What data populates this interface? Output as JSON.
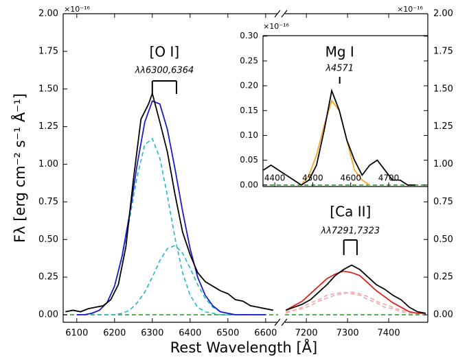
{
  "chart_data": [
    {
      "type": "line",
      "ylabel": "Fλ [erg cm⁻² s⁻¹ Å⁻¹]",
      "xlabel": "Rest Wavelength [Å]",
      "y_offset_label": "×10⁻¹⁶",
      "yaxis_side": "left",
      "xlim": [
        6064,
        6633
      ],
      "ylim": [
        -0.05,
        2.0
      ],
      "xticks": [
        6100,
        6200,
        6300,
        6400,
        6500,
        6600
      ],
      "yticks": [
        {
          "value": 0,
          "label": "0.00"
        },
        0.25,
        {
          "value": 0.5,
          "label": "0.50"
        },
        0.75,
        {
          "value": 1,
          "label": "1.00"
        },
        1.25,
        {
          "value": 1.5,
          "label": "1.50"
        },
        1.75,
        {
          "value": 2,
          "label": "2.00"
        }
      ],
      "series": [
        {
          "color": "#2ca02c",
          "dash": true,
          "x": [
            6064,
            6633
          ],
          "values": [
            0,
            0
          ]
        },
        {
          "color": "#1fb8c8",
          "dash": true,
          "x": [
            6100,
            6120,
            6140,
            6160,
            6180,
            6200,
            6220,
            6240,
            6260,
            6280,
            6300,
            6320,
            6340,
            6360,
            6380,
            6400,
            6420,
            6440,
            6460,
            6480,
            6500,
            6520,
            6540,
            6560,
            6580,
            6600
          ],
          "values": [
            0,
            0,
            0.01,
            0.03,
            0.08,
            0.19,
            0.38,
            0.64,
            0.92,
            1.13,
            1.17,
            1.04,
            0.79,
            0.51,
            0.28,
            0.13,
            0.05,
            0.02,
            0.01,
            0,
            0,
            0,
            0,
            0,
            0,
            0
          ]
        },
        {
          "color": "#1fb8c8",
          "dash": true,
          "x": [
            6100,
            6120,
            6140,
            6160,
            6180,
            6200,
            6220,
            6240,
            6260,
            6280,
            6300,
            6320,
            6340,
            6360,
            6380,
            6400,
            6420,
            6440,
            6460,
            6480,
            6500,
            6520,
            6540,
            6560,
            6580,
            6600
          ],
          "values": [
            0,
            0,
            0,
            0,
            0,
            0,
            0.01,
            0.03,
            0.08,
            0.15,
            0.25,
            0.36,
            0.44,
            0.46,
            0.41,
            0.31,
            0.2,
            0.11,
            0.05,
            0.02,
            0.01,
            0,
            0,
            0,
            0,
            0
          ]
        },
        {
          "color": "#1a1acc",
          "dash": false,
          "x": [
            6100,
            6120,
            6140,
            6160,
            6180,
            6200,
            6220,
            6240,
            6260,
            6280,
            6300,
            6320,
            6340,
            6360,
            6380,
            6400,
            6420,
            6440,
            6460,
            6480,
            6500,
            6520,
            6540,
            6560,
            6580,
            6600
          ],
          "values": [
            0,
            0,
            0.01,
            0.03,
            0.08,
            0.19,
            0.39,
            0.67,
            1.0,
            1.28,
            1.42,
            1.4,
            1.23,
            0.97,
            0.69,
            0.44,
            0.25,
            0.13,
            0.06,
            0.02,
            0.01,
            0,
            0,
            0,
            0,
            0
          ]
        },
        {
          "color": "#000000",
          "dash": false,
          "x": [
            6070,
            6090,
            6110,
            6130,
            6150,
            6170,
            6190,
            6210,
            6230,
            6250,
            6270,
            6290,
            6300,
            6320,
            6340,
            6360,
            6380,
            6400,
            6420,
            6440,
            6460,
            6480,
            6500,
            6520,
            6540,
            6560,
            6580,
            6600,
            6620
          ],
          "values": [
            0.02,
            0.03,
            0.02,
            0.04,
            0.05,
            0.06,
            0.1,
            0.2,
            0.45,
            0.9,
            1.3,
            1.4,
            1.47,
            1.28,
            1.08,
            0.8,
            0.55,
            0.4,
            0.28,
            0.22,
            0.19,
            0.16,
            0.14,
            0.1,
            0.09,
            0.06,
            0.05,
            0.04,
            0.03
          ]
        }
      ],
      "annotations": [
        {
          "label": "[O I]",
          "sublabel": "λλ6300,6364",
          "lines": [
            6300,
            6364
          ]
        }
      ]
    },
    {
      "type": "line",
      "y_offset_label": "×10⁻¹⁶",
      "yaxis_side": "right",
      "xlim": [
        7148,
        7495
      ],
      "ylim": [
        -0.05,
        2.0
      ],
      "xticks": [
        7200,
        7300,
        7400
      ],
      "yticks": [
        {
          "value": 0,
          "label": "0.00"
        },
        0.25,
        {
          "value": 0.5,
          "label": "0.50"
        },
        0.75,
        {
          "value": 1,
          "label": "1.00"
        },
        1.25,
        {
          "value": 1.5,
          "label": "1.50"
        },
        1.75,
        {
          "value": 2,
          "label": "2.00"
        }
      ],
      "series": [
        {
          "color": "#2ca02c",
          "dash": true,
          "x": [
            7148,
            7495
          ],
          "values": [
            0,
            0
          ]
        },
        {
          "color": "#f4a6a6",
          "dash": true,
          "x": [
            7150,
            7170,
            7190,
            7210,
            7230,
            7250,
            7270,
            7290,
            7310,
            7330,
            7350,
            7370,
            7390,
            7410,
            7430,
            7450,
            7470,
            7490
          ],
          "values": [
            0.02,
            0.03,
            0.05,
            0.08,
            0.1,
            0.13,
            0.14,
            0.15,
            0.14,
            0.13,
            0.1,
            0.08,
            0.05,
            0.04,
            0.02,
            0.01,
            0.01,
            0
          ]
        },
        {
          "color": "#f4a6a6",
          "dash": true,
          "x": [
            7150,
            7170,
            7190,
            7210,
            7230,
            7250,
            7270,
            7290,
            7310,
            7330,
            7350,
            7370,
            7390,
            7410,
            7430,
            7450,
            7470,
            7490
          ],
          "values": [
            0.01,
            0.03,
            0.04,
            0.06,
            0.09,
            0.11,
            0.13,
            0.14,
            0.15,
            0.14,
            0.12,
            0.09,
            0.07,
            0.05,
            0.03,
            0.02,
            0.01,
            0.01
          ]
        },
        {
          "color": "#e02020",
          "dash": false,
          "x": [
            7150,
            7170,
            7190,
            7210,
            7230,
            7250,
            7270,
            7290,
            7310,
            7330,
            7350,
            7370,
            7390,
            7410,
            7430,
            7450,
            7470,
            7490
          ],
          "values": [
            0.03,
            0.06,
            0.09,
            0.14,
            0.19,
            0.24,
            0.27,
            0.29,
            0.28,
            0.26,
            0.21,
            0.16,
            0.12,
            0.08,
            0.05,
            0.02,
            0.01,
            0.01
          ]
        },
        {
          "color": "#000000",
          "dash": false,
          "x": [
            7150,
            7170,
            7190,
            7210,
            7230,
            7250,
            7270,
            7290,
            7310,
            7330,
            7350,
            7370,
            7390,
            7410,
            7430,
            7450,
            7470,
            7490
          ],
          "values": [
            0.03,
            0.05,
            0.07,
            0.1,
            0.15,
            0.2,
            0.26,
            0.3,
            0.33,
            0.3,
            0.25,
            0.2,
            0.17,
            0.13,
            0.1,
            0.05,
            0.02,
            0.01
          ]
        }
      ],
      "annotations": [
        {
          "label": "[Ca II]",
          "sublabel": "λλ7291,7323",
          "lines": [
            7291,
            7323
          ]
        }
      ]
    },
    {
      "type": "line",
      "y_offset_label": "×10⁻¹⁶",
      "yaxis_side": "left",
      "xlim": [
        4369,
        4803
      ],
      "ylim": [
        -0.003,
        0.301
      ],
      "xticks": [
        4400,
        4500,
        4600,
        4700
      ],
      "yticks": [
        {
          "value": 0,
          "label": "0.00"
        },
        0.05,
        {
          "value": 0.1,
          "label": "0.10"
        },
        0.15,
        {
          "value": 0.2,
          "label": "0.20"
        },
        0.25,
        {
          "value": 0.3,
          "label": "0.30"
        }
      ],
      "series": [
        {
          "color": "#2ca02c",
          "dash": true,
          "x": [
            4369,
            4803
          ],
          "values": [
            0,
            0
          ]
        },
        {
          "color": "#f5a623",
          "dash": false,
          "x": [
            4470,
            4490,
            4510,
            4530,
            4550,
            4570,
            4590,
            4610,
            4630,
            4650
          ],
          "values": [
            0,
            0.02,
            0.06,
            0.12,
            0.17,
            0.15,
            0.09,
            0.03,
            0.01,
            0
          ]
        },
        {
          "color": "#000000",
          "dash": false,
          "x": [
            4370,
            4390,
            4410,
            4430,
            4450,
            4470,
            4490,
            4510,
            4530,
            4550,
            4570,
            4590,
            4610,
            4630,
            4650,
            4670,
            4690,
            4710,
            4730,
            4750,
            4770
          ],
          "values": [
            0.03,
            0.04,
            0.03,
            0.02,
            0.01,
            0,
            0.01,
            0.04,
            0.11,
            0.19,
            0.15,
            0.09,
            0.05,
            0.02,
            0.04,
            0.05,
            0.03,
            0.01,
            0.01,
            0,
            0
          ]
        }
      ],
      "annotations": [
        {
          "label": "Mg I",
          "sublabel": "λ4571",
          "lines": [
            4571
          ]
        }
      ]
    }
  ]
}
